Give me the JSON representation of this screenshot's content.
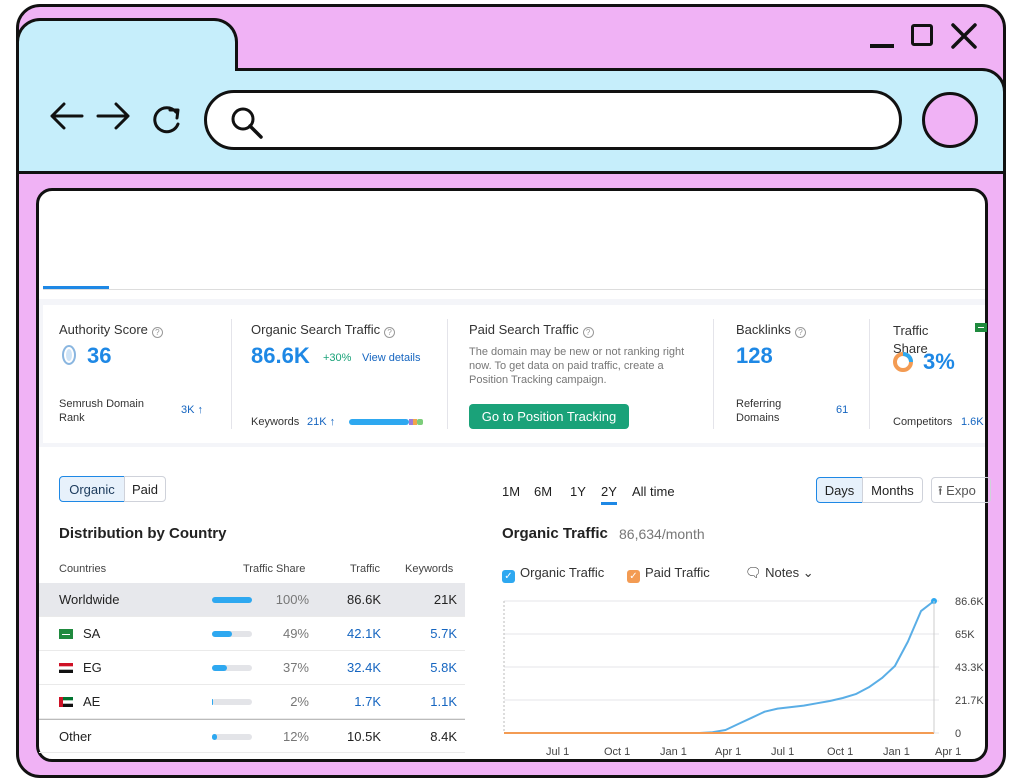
{
  "browser": {
    "window_controls": [
      "minimize",
      "maximize",
      "close"
    ],
    "nav_icons": [
      "back-arrow-icon",
      "forward-arrow-icon",
      "reload-icon"
    ],
    "address_placeholder": ""
  },
  "stats": {
    "authority": {
      "label": "Authority Score",
      "value": "36",
      "rank_label": "Semrush Domain Rank",
      "rank_value": "3K ↑"
    },
    "organic": {
      "label": "Organic Search Traffic",
      "value": "86.6K",
      "change": "+30%",
      "link": "View details",
      "keywords_label": "Keywords",
      "keywords_value": "21K ↑"
    },
    "paid": {
      "label": "Paid Search Traffic",
      "note": "The domain may be new or not ranking right now. To get data on paid traffic, create a Position Tracking campaign.",
      "button": "Go to Position Tracking"
    },
    "backlinks": {
      "label": "Backlinks",
      "value": "128",
      "ref_label": "Referring Domains",
      "ref_value": "61"
    },
    "traffic_share": {
      "label": "Traffic Share",
      "value": "3%",
      "comp_label": "Competitors",
      "comp_value": "1.6K"
    }
  },
  "filters": {
    "organic": "Organic",
    "paid": "Paid"
  },
  "distribution": {
    "title": "Distribution by Country",
    "headers": [
      "Countries",
      "Traffic Share",
      "Traffic",
      "Keywords"
    ],
    "rows": [
      {
        "country": "Worldwide",
        "share": "100%",
        "share_value": 1.0,
        "traffic": "86.6K",
        "keywords": "21K"
      },
      {
        "country": "SA",
        "share": "49%",
        "share_value": 0.49,
        "traffic": "42.1K",
        "keywords": "5.7K"
      },
      {
        "country": "EG",
        "share": "37%",
        "share_value": 0.37,
        "traffic": "32.4K",
        "keywords": "5.8K"
      },
      {
        "country": "AE",
        "share": "2%",
        "share_value": 0.02,
        "traffic": "1.7K",
        "keywords": "1.1K"
      },
      {
        "country": "Other",
        "share": "12%",
        "share_value": 0.12,
        "traffic": "10.5K",
        "keywords": "8.4K"
      }
    ]
  },
  "periods": [
    "1M",
    "6M",
    "1Y",
    "2Y",
    "All time"
  ],
  "active_period": "2Y",
  "granularity": {
    "days": "Days",
    "months": "Months",
    "export": "Expo"
  },
  "organic_traffic": {
    "title": "Organic Traffic",
    "subtitle": "86,634/month",
    "legend": {
      "organic": "Organic Traffic",
      "paid": "Paid Traffic",
      "notes": "Notes"
    }
  },
  "chart_data": {
    "type": "line",
    "title": "",
    "x_ticks": [
      "Jul 1",
      "Oct 1",
      "Jan 1",
      "Apr 1",
      "Jul 1",
      "Oct 1",
      "Jan 1",
      "Apr 1"
    ],
    "y_ticks": [
      "86.6K",
      "65K",
      "43.3K",
      "21.7K",
      "0"
    ],
    "ylim": [
      0,
      86634
    ],
    "series": [
      {
        "name": "Organic Traffic",
        "color": "#5aaee6",
        "values": [
          0,
          0,
          0,
          0,
          0,
          0,
          0,
          0,
          0,
          0,
          0,
          0,
          0,
          0,
          0,
          0,
          500,
          2000,
          6000,
          10000,
          14000,
          16000,
          17000,
          18000,
          19500,
          21000,
          23000,
          25500,
          30000,
          36000,
          44000,
          60000,
          80000,
          86634
        ]
      },
      {
        "name": "Paid Traffic",
        "color": "#f39b53",
        "values": [
          0,
          0,
          0,
          0,
          0,
          0,
          0,
          0,
          0,
          0,
          0,
          0,
          0,
          0,
          0,
          0,
          0,
          0,
          0,
          0,
          0,
          0,
          0,
          0,
          0,
          0,
          0,
          0,
          0,
          0,
          0,
          0,
          0,
          0
        ]
      }
    ]
  }
}
